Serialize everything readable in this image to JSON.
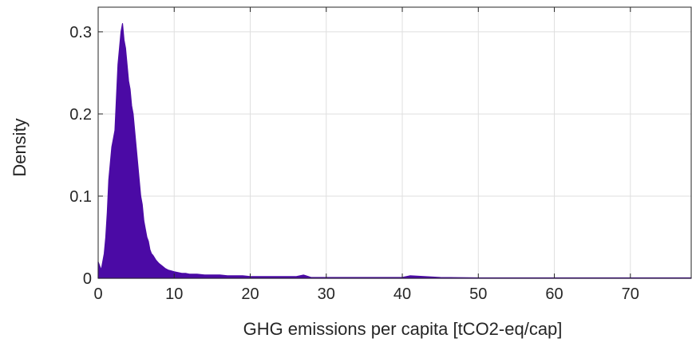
{
  "chart_data": {
    "type": "area",
    "title": "",
    "xlabel": "GHG emissions per capita [tCO2-eq/cap]",
    "ylabel": "Density",
    "xlim": [
      0,
      78
    ],
    "ylim": [
      0,
      0.33
    ],
    "xticks": [
      0,
      10,
      20,
      30,
      40,
      50,
      60,
      70
    ],
    "yticks": [
      0,
      0.1,
      0.2,
      0.3
    ],
    "xtick_labels": [
      "0",
      "10",
      "20",
      "30",
      "40",
      "50",
      "60",
      "70"
    ],
    "ytick_labels": [
      "0",
      "0.1",
      "0.2",
      "0.3"
    ],
    "grid": true,
    "legend": "none",
    "color": "#4b0aa5",
    "series": [
      {
        "x": [
          0.0,
          0.2,
          0.4,
          0.6,
          0.8,
          1.0,
          1.2,
          1.4,
          1.6,
          1.8,
          2.0,
          2.2,
          2.4,
          2.6,
          2.8,
          3.0,
          3.2,
          3.4,
          3.6,
          3.8,
          4.0,
          4.2,
          4.4,
          4.6,
          4.8,
          5.0,
          5.2,
          5.4,
          5.6,
          5.8,
          6.0,
          6.2,
          6.4,
          6.6,
          6.8,
          7.0,
          7.2,
          7.4,
          7.6,
          7.8,
          8.0,
          8.4,
          8.8,
          9.2,
          9.6,
          10.0,
          10.5,
          11.0,
          11.5,
          12.0,
          13.0,
          14.0,
          15.0,
          16.0,
          17.0,
          18.0,
          19.0,
          20.0,
          22.0,
          24.0,
          26.0,
          27.0,
          28.0,
          30.0,
          35.0,
          40.0,
          41.0,
          45.0,
          50.0,
          60.0,
          70.0,
          78.0
        ],
        "y": [
          0.02,
          0.015,
          0.01,
          0.02,
          0.03,
          0.05,
          0.08,
          0.12,
          0.14,
          0.16,
          0.17,
          0.18,
          0.22,
          0.26,
          0.28,
          0.3,
          0.31,
          0.29,
          0.28,
          0.26,
          0.24,
          0.23,
          0.21,
          0.2,
          0.18,
          0.16,
          0.14,
          0.12,
          0.1,
          0.09,
          0.07,
          0.06,
          0.05,
          0.045,
          0.035,
          0.03,
          0.028,
          0.025,
          0.022,
          0.02,
          0.018,
          0.015,
          0.012,
          0.01,
          0.009,
          0.008,
          0.007,
          0.006,
          0.006,
          0.005,
          0.005,
          0.004,
          0.004,
          0.004,
          0.003,
          0.003,
          0.003,
          0.002,
          0.002,
          0.002,
          0.002,
          0.004,
          0.001,
          0.001,
          0.001,
          0.001,
          0.003,
          0.001,
          0.0005,
          0.0005,
          0.0005,
          0.0005
        ]
      }
    ]
  }
}
